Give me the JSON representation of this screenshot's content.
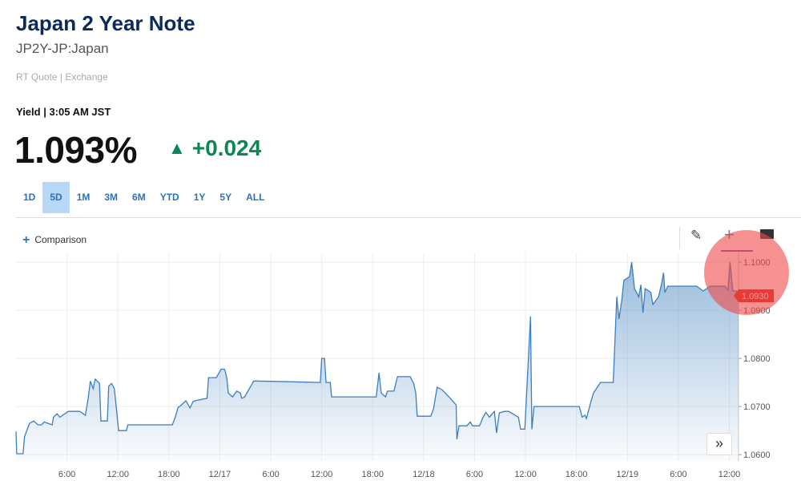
{
  "header": {
    "title": "Japan 2 Year Note",
    "symbol": "JP2Y-JP:Japan",
    "quote_source": "RT Quote | Exchange",
    "yield_label": "Yield | 3:05 AM JST",
    "price": "1.093%",
    "change": "+0.024",
    "change_direction": "up",
    "change_color": "#0a8754"
  },
  "range_tabs": [
    {
      "label": "1D",
      "active": false
    },
    {
      "label": "5D",
      "active": true
    },
    {
      "label": "1M",
      "active": false
    },
    {
      "label": "3M",
      "active": false
    },
    {
      "label": "6M",
      "active": false
    },
    {
      "label": "YTD",
      "active": false
    },
    {
      "label": "1Y",
      "active": false
    },
    {
      "label": "5Y",
      "active": false
    },
    {
      "label": "ALL",
      "active": false
    }
  ],
  "toolbar": {
    "comparison_label": "Comparison",
    "icons": [
      "pencil-icon",
      "crosshair-icon",
      "chart-legend-icon"
    ],
    "expand_label": "»"
  },
  "chart_data": {
    "type": "area",
    "xlim": [
      "12/16 00:00",
      "12/19 13:05"
    ],
    "ylim": [
      1.0587,
      1.102
    ],
    "grid": true,
    "y_axis_position": "right",
    "line_color": "#3a7fc1",
    "last_value": "1.0930",
    "last_value_color": "#d9281e",
    "x_ticks": [
      {
        "t": "12/16 06:00",
        "label": "6:00"
      },
      {
        "t": "12/16 12:00",
        "label": "12:00"
      },
      {
        "t": "12/16 18:00",
        "label": "18:00"
      },
      {
        "t": "12/17 00:00",
        "label": "12/17"
      },
      {
        "t": "12/17 06:00",
        "label": "6:00"
      },
      {
        "t": "12/17 12:00",
        "label": "12:00"
      },
      {
        "t": "12/17 18:00",
        "label": "18:00"
      },
      {
        "t": "12/18 00:00",
        "label": "12/18"
      },
      {
        "t": "12/18 06:00",
        "label": "6:00"
      },
      {
        "t": "12/18 12:00",
        "label": "12:00"
      },
      {
        "t": "12/18 18:00",
        "label": "18:00"
      },
      {
        "t": "12/19 00:00",
        "label": "12/19"
      },
      {
        "t": "12/19 06:00",
        "label": "6:00"
      },
      {
        "t": "12/19 12:00",
        "label": "12:00"
      }
    ],
    "y_ticks": [
      {
        "v": 1.06,
        "label": "1.0600"
      },
      {
        "v": 1.07,
        "label": "1.0700"
      },
      {
        "v": 1.08,
        "label": "1.0800"
      },
      {
        "v": 1.09,
        "label": "1.0900"
      },
      {
        "v": 1.1,
        "label": "1.1000"
      }
    ],
    "points": [
      [
        "12/16 00:00",
        1.0648
      ],
      [
        "12/16 00:05",
        1.0602
      ],
      [
        "12/16 00:50",
        1.0602
      ],
      [
        "12/16 01:00",
        1.0637
      ],
      [
        "12/16 01:25",
        1.0657
      ],
      [
        "12/16 01:35",
        1.0665
      ],
      [
        "12/16 02:05",
        1.067
      ],
      [
        "12/16 02:35",
        1.0662
      ],
      [
        "12/16 03:00",
        1.0662
      ],
      [
        "12/16 03:20",
        1.0668
      ],
      [
        "12/16 04:15",
        1.0662
      ],
      [
        "12/16 04:25",
        1.0678
      ],
      [
        "12/16 04:50",
        1.0685
      ],
      [
        "12/16 05:10",
        1.0678
      ],
      [
        "12/16 06:10",
        1.069
      ],
      [
        "12/16 07:30",
        1.069
      ],
      [
        "12/16 08:10",
        1.0682
      ],
      [
        "12/16 08:30",
        1.0717
      ],
      [
        "12/16 08:45",
        1.0753
      ],
      [
        "12/16 09:05",
        1.0737
      ],
      [
        "12/16 09:20",
        1.0757
      ],
      [
        "12/16 09:50",
        1.0748
      ],
      [
        "12/16 10:00",
        1.067
      ],
      [
        "12/16 10:45",
        1.067
      ],
      [
        "12/16 10:55",
        1.0742
      ],
      [
        "12/16 11:15",
        1.0748
      ],
      [
        "12/16 11:35",
        1.0737
      ],
      [
        "12/16 12:05",
        1.065
      ],
      [
        "12/16 13:00",
        1.065
      ],
      [
        "12/16 13:10",
        1.0662
      ],
      [
        "12/16 18:25",
        1.0662
      ],
      [
        "12/16 18:45",
        1.0678
      ],
      [
        "12/16 19:05",
        1.0698
      ],
      [
        "12/16 19:25",
        1.0702
      ],
      [
        "12/16 20:00",
        1.0712
      ],
      [
        "12/16 20:30",
        1.0697
      ],
      [
        "12/16 20:50",
        1.071
      ],
      [
        "12/16 21:05",
        1.0712
      ],
      [
        "12/16 22:30",
        1.0717
      ],
      [
        "12/16 22:40",
        1.076
      ],
      [
        "12/16 23:35",
        1.076
      ],
      [
        "12/17 00:10",
        1.0778
      ],
      [
        "12/17 00:35",
        1.0777
      ],
      [
        "12/17 00:50",
        1.0758
      ],
      [
        "12/17 01:00",
        1.0728
      ],
      [
        "12/17 01:30",
        1.072
      ],
      [
        "12/17 02:00",
        1.0732
      ],
      [
        "12/17 02:25",
        1.0728
      ],
      [
        "12/17 02:35",
        1.0717
      ],
      [
        "12/17 02:55",
        1.072
      ],
      [
        "12/17 04:00",
        1.0753
      ],
      [
        "12/17 04:15",
        1.0753
      ],
      [
        "12/17 11:50",
        1.075
      ],
      [
        "12/17 12:00",
        1.08
      ],
      [
        "12/17 12:20",
        1.08
      ],
      [
        "12/17 12:30",
        1.075
      ],
      [
        "12/17 13:00",
        1.075
      ],
      [
        "12/17 13:10",
        1.072
      ],
      [
        "12/17 18:25",
        1.072
      ],
      [
        "12/17 18:45",
        1.077
      ],
      [
        "12/17 19:00",
        1.0728
      ],
      [
        "12/17 19:30",
        1.072
      ],
      [
        "12/17 19:45",
        1.0732
      ],
      [
        "12/17 20:30",
        1.0732
      ],
      [
        "12/17 20:55",
        1.0762
      ],
      [
        "12/17 22:25",
        1.0762
      ],
      [
        "12/17 22:50",
        1.0748
      ],
      [
        "12/17 23:05",
        1.0728
      ],
      [
        "12/17 23:15",
        1.068
      ],
      [
        "12/18 00:50",
        1.068
      ],
      [
        "12/18 01:10",
        1.0695
      ],
      [
        "12/18 01:35",
        1.074
      ],
      [
        "12/18 02:10",
        1.0735
      ],
      [
        "12/18 03:05",
        1.0718
      ],
      [
        "12/18 03:50",
        1.0703
      ],
      [
        "12/18 03:55",
        1.0632
      ],
      [
        "12/18 04:10",
        1.066
      ],
      [
        "12/18 05:05",
        1.066
      ],
      [
        "12/18 05:30",
        1.0668
      ],
      [
        "12/18 05:45",
        1.066
      ],
      [
        "12/18 06:35",
        1.066
      ],
      [
        "12/18 07:00",
        1.0678
      ],
      [
        "12/18 07:20",
        1.0688
      ],
      [
        "12/18 07:45",
        1.0678
      ],
      [
        "12/18 08:20",
        1.069
      ],
      [
        "12/18 08:35",
        1.0645
      ],
      [
        "12/18 08:55",
        1.0687
      ],
      [
        "12/18 09:30",
        1.069
      ],
      [
        "12/18 10:00",
        1.069
      ],
      [
        "12/18 11:10",
        1.0678
      ],
      [
        "12/18 11:25",
        1.0653
      ],
      [
        "12/18 11:55",
        1.0653
      ],
      [
        "12/18 12:35",
        1.0887
      ],
      [
        "12/18 12:45",
        1.0653
      ],
      [
        "12/18 13:00",
        1.07
      ],
      [
        "12/18 18:20",
        1.07
      ],
      [
        "12/18 18:40",
        1.0678
      ],
      [
        "12/18 19:00",
        1.0682
      ],
      [
        "12/18 19:10",
        1.0675
      ],
      [
        "12/18 19:40",
        1.0708
      ],
      [
        "12/18 20:00",
        1.0728
      ],
      [
        "12/18 20:50",
        1.075
      ],
      [
        "12/18 22:20",
        1.075
      ],
      [
        "12/18 22:45",
        1.0928
      ],
      [
        "12/18 23:00",
        1.0882
      ],
      [
        "12/18 23:20",
        1.092
      ],
      [
        "12/18 23:35",
        1.0962
      ],
      [
        "12/19 00:15",
        1.097
      ],
      [
        "12/19 00:30",
        1.1
      ],
      [
        "12/19 00:50",
        1.0945
      ],
      [
        "12/19 01:20",
        1.0928
      ],
      [
        "12/19 01:35",
        1.0953
      ],
      [
        "12/19 01:50",
        1.0895
      ],
      [
        "12/19 02:05",
        1.0945
      ],
      [
        "12/19 02:45",
        1.0937
      ],
      [
        "12/19 03:00",
        1.0912
      ],
      [
        "12/19 03:40",
        1.0928
      ],
      [
        "12/19 04:00",
        1.0953
      ],
      [
        "12/19 04:15",
        1.0978
      ],
      [
        "12/19 04:25",
        1.0937
      ],
      [
        "12/19 04:45",
        1.095
      ],
      [
        "12/19 08:10",
        1.095
      ],
      [
        "12/19 08:55",
        1.094
      ],
      [
        "12/19 09:45",
        1.095
      ],
      [
        "12/19 11:30",
        1.095
      ],
      [
        "12/19 11:50",
        1.0942
      ],
      [
        "12/19 12:05",
        1.1
      ],
      [
        "12/19 12:25",
        1.094
      ],
      [
        "12/19 12:50",
        1.094
      ],
      [
        "12/19 13:05",
        1.093
      ]
    ]
  }
}
